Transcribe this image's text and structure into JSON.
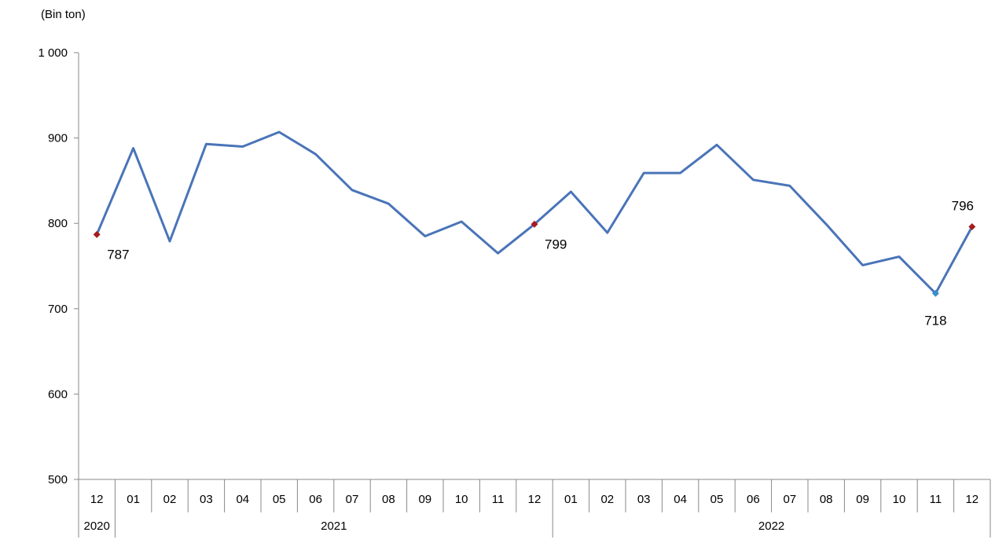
{
  "chart_data": {
    "type": "line",
    "unit_label": "(Bin  ton)",
    "y_ticks": [
      "1 000",
      "900",
      "800",
      "700",
      "600",
      "500"
    ],
    "ylim": [
      500,
      1000
    ],
    "grid": false,
    "x": [
      "12",
      "01",
      "02",
      "03",
      "04",
      "05",
      "06",
      "07",
      "08",
      "09",
      "10",
      "11",
      "12",
      "01",
      "02",
      "03",
      "04",
      "05",
      "06",
      "07",
      "08",
      "09",
      "10",
      "11",
      "12"
    ],
    "year_groups": [
      {
        "label": "2020",
        "count": 1
      },
      {
        "label": "2021",
        "count": 12
      },
      {
        "label": "2022",
        "count": 12
      }
    ],
    "series": [
      {
        "color": "#4a74b8",
        "values": [
          787,
          888,
          779,
          893,
          890,
          907,
          881,
          839,
          823,
          785,
          802,
          765,
          799,
          837,
          789,
          859,
          859,
          892,
          851,
          844,
          799,
          751,
          761,
          718,
          796
        ]
      }
    ],
    "annotations": [
      {
        "index": 0,
        "label": "787",
        "marker_color": "#a51d1d",
        "position": "below-right"
      },
      {
        "index": 12,
        "label": "799",
        "marker_color": "#a51d1d",
        "position": "below-right"
      },
      {
        "index": 23,
        "label": "718",
        "marker_color": "#3a8fc8",
        "position": "below"
      },
      {
        "index": 24,
        "label": "796",
        "marker_color": "#a51d1d",
        "position": "above"
      }
    ]
  }
}
